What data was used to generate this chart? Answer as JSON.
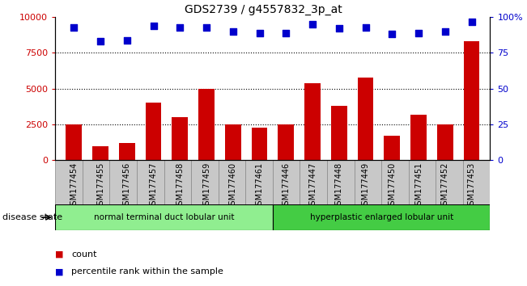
{
  "title": "GDS2739 / g4557832_3p_at",
  "samples": [
    "GSM177454",
    "GSM177455",
    "GSM177456",
    "GSM177457",
    "GSM177458",
    "GSM177459",
    "GSM177460",
    "GSM177461",
    "GSM177446",
    "GSM177447",
    "GSM177448",
    "GSM177449",
    "GSM177450",
    "GSM177451",
    "GSM177452",
    "GSM177453"
  ],
  "counts": [
    2500,
    1000,
    1200,
    4000,
    3000,
    5000,
    2500,
    2300,
    2500,
    5400,
    3800,
    5800,
    1700,
    3200,
    2500,
    8300
  ],
  "percentiles": [
    93,
    83,
    84,
    94,
    93,
    93,
    90,
    89,
    89,
    95,
    92,
    93,
    88,
    89,
    90,
    97
  ],
  "bar_color": "#cc0000",
  "dot_color": "#0000cc",
  "group1_label": "normal terminal duct lobular unit",
  "group2_label": "hyperplastic enlarged lobular unit",
  "group1_count": 8,
  "group2_count": 8,
  "disease_state_label": "disease state",
  "legend_count_label": "count",
  "legend_pct_label": "percentile rank within the sample",
  "ylim_left": [
    0,
    10000
  ],
  "ylim_right": [
    0,
    100
  ],
  "yticks_left": [
    0,
    2500,
    5000,
    7500,
    10000
  ],
  "yticks_right": [
    0,
    25,
    50,
    75,
    100
  ],
  "grid_values": [
    2500,
    5000,
    7500
  ],
  "group1_bg": "#90ee90",
  "group2_bg": "#44cc44",
  "xtick_bg": "#c8c8c8"
}
